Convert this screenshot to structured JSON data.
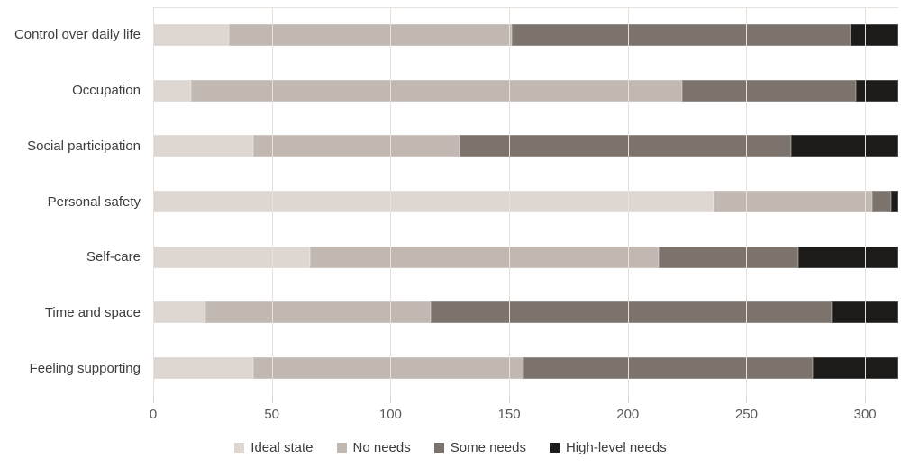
{
  "chart_data": {
    "type": "bar",
    "orientation": "horizontal",
    "stacked": true,
    "title": "",
    "xlabel": "",
    "ylabel": "",
    "categories": [
      "Control over daily life",
      "Occupation",
      "Social participation",
      "Personal safety",
      "Self-care",
      "Time and space",
      "Feeling supporting"
    ],
    "series": [
      {
        "name": "Ideal state",
        "color": "#ded7d1",
        "values": [
          32,
          16,
          42,
          236,
          66,
          22,
          42
        ]
      },
      {
        "name": "No needs",
        "color": "#c1b8b2",
        "values": [
          119,
          207,
          87,
          67,
          147,
          95,
          114
        ]
      },
      {
        "name": "Some needs",
        "color": "#7b736c",
        "values": [
          143,
          73,
          140,
          8,
          59,
          169,
          122
        ]
      },
      {
        "name": "High-level needs",
        "color": "#1d1b19",
        "values": [
          20,
          18,
          45,
          3,
          42,
          28,
          36
        ]
      }
    ],
    "row_totals": [
      314,
      314,
      314,
      314,
      314,
      314,
      314
    ],
    "xticks": [
      0,
      50,
      100,
      150,
      200,
      250,
      300
    ],
    "xlim": [
      0,
      314
    ],
    "grid": "vertical-only",
    "legend_position": "bottom"
  },
  "style": {
    "gridline_color": "#e8e1db",
    "tick_text_color": "#585858",
    "label_text_color": "#3d3d3d",
    "background_color": "#ffffff"
  }
}
